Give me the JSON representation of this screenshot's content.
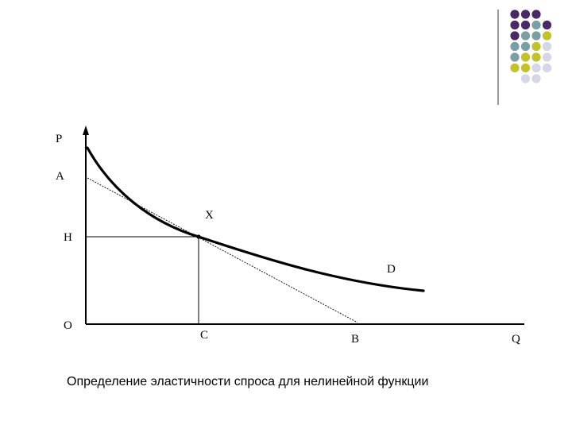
{
  "diagram": {
    "labels": {
      "p": "P",
      "a": "A",
      "x": "X",
      "h": "H",
      "d": "D",
      "o": "O",
      "c": "C",
      "b": "B",
      "q": "Q"
    },
    "caption": "Определение эластичности спроса для нелинейной функции"
  },
  "decor": {
    "colors": {
      "purple": "#4a2a66",
      "teal": "#7a9ea5",
      "olive": "#c3c22a",
      "lavender": "#d6d6e6",
      "line": "#000000"
    },
    "grid": [
      [
        "purple",
        "purple",
        "purple",
        "none"
      ],
      [
        "purple",
        "purple",
        "teal",
        "purple"
      ],
      [
        "purple",
        "teal",
        "teal",
        "olive"
      ],
      [
        "teal",
        "teal",
        "olive",
        "lavender"
      ],
      [
        "teal",
        "olive",
        "olive",
        "lavender"
      ],
      [
        "olive",
        "olive",
        "lavender",
        "lavender"
      ],
      [
        "none",
        "lavender",
        "lavender",
        "none"
      ]
    ]
  }
}
